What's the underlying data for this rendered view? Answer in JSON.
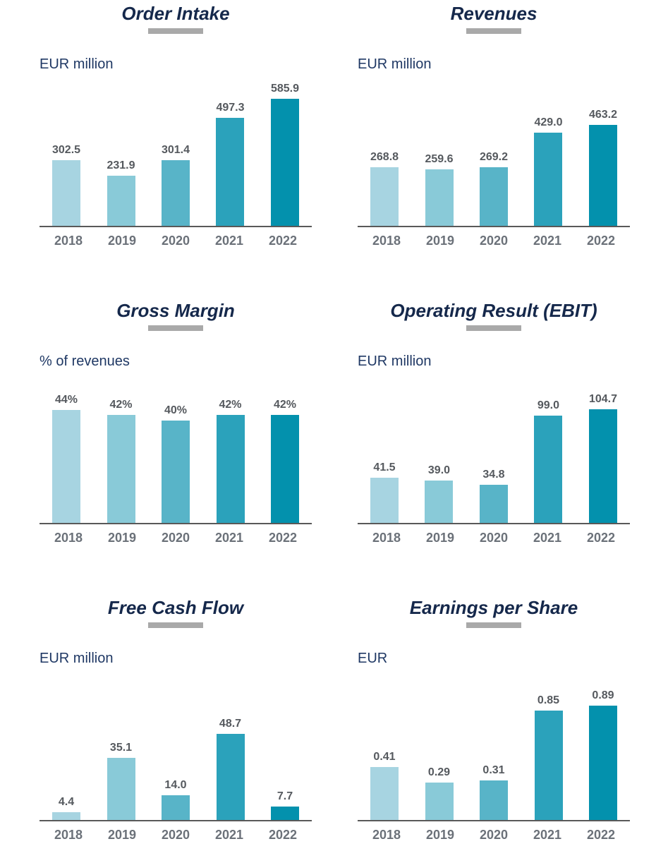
{
  "style": {
    "background": "#ffffff",
    "title_color": "#15284b",
    "unit_label_color": "#1f3864",
    "value_label_color": "#55595e",
    "year_label_color": "#6b7179",
    "axis_color": "#595959",
    "divider_color": "#a9a9a9",
    "bar_colors": [
      "#a7d4e1",
      "#89cad8",
      "#58b4c8",
      "#2ba2bb",
      "#0391ad"
    ]
  },
  "chart_data": [
    {
      "type": "bar",
      "title": "Order Intake",
      "ylabel": "EUR million",
      "categories": [
        "2018",
        "2019",
        "2020",
        "2021",
        "2022"
      ],
      "values": [
        302.5,
        231.9,
        301.4,
        497.3,
        585.9
      ],
      "value_labels": [
        "302.5",
        "231.9",
        "301.4",
        "497.3",
        "585.9"
      ],
      "ylim": [
        0,
        650
      ],
      "grid": false,
      "legend": false
    },
    {
      "type": "bar",
      "title": "Revenues",
      "ylabel": "EUR million",
      "categories": [
        "2018",
        "2019",
        "2020",
        "2021",
        "2022"
      ],
      "values": [
        268.8,
        259.6,
        269.2,
        429.0,
        463.2
      ],
      "value_labels": [
        "268.8",
        "259.6",
        "269.2",
        "429.0",
        "463.2"
      ],
      "ylim": [
        0,
        650
      ],
      "grid": false,
      "legend": false
    },
    {
      "type": "bar",
      "title": "Gross Margin",
      "ylabel": "% of revenues",
      "categories": [
        "2018",
        "2019",
        "2020",
        "2021",
        "2022"
      ],
      "values": [
        44,
        42,
        40,
        42,
        42
      ],
      "value_labels": [
        "44%",
        "42%",
        "40%",
        "42%",
        "42%"
      ],
      "ylim": [
        0,
        55
      ],
      "grid": false,
      "legend": false
    },
    {
      "type": "bar",
      "title": "Operating Result (EBIT)",
      "ylabel": "EUR million",
      "categories": [
        "2018",
        "2019",
        "2020",
        "2021",
        "2022"
      ],
      "values": [
        41.5,
        39.0,
        34.8,
        99.0,
        104.7
      ],
      "value_labels": [
        "41.5",
        "39.0",
        "34.8",
        "99.0",
        "104.7"
      ],
      "ylim": [
        0,
        130
      ],
      "grid": false,
      "legend": false
    },
    {
      "type": "bar",
      "title": "Free Cash Flow",
      "ylabel": "EUR million",
      "categories": [
        "2018",
        "2019",
        "2020",
        "2021",
        "2022"
      ],
      "values": [
        4.4,
        35.1,
        14.0,
        48.7,
        7.7
      ],
      "value_labels": [
        "4.4",
        "35.1",
        "14.0",
        "48.7",
        "7.7"
      ],
      "ylim": [
        0,
        80
      ],
      "grid": false,
      "legend": false
    },
    {
      "type": "bar",
      "title": "Earnings per Share",
      "ylabel": "EUR",
      "categories": [
        "2018",
        "2019",
        "2020",
        "2021",
        "2022"
      ],
      "values": [
        0.41,
        0.29,
        0.31,
        0.85,
        0.89
      ],
      "value_labels": [
        "0.41",
        "0.29",
        "0.31",
        "0.85",
        "0.89"
      ],
      "ylim": [
        0,
        1.1
      ],
      "grid": false,
      "legend": false
    }
  ]
}
